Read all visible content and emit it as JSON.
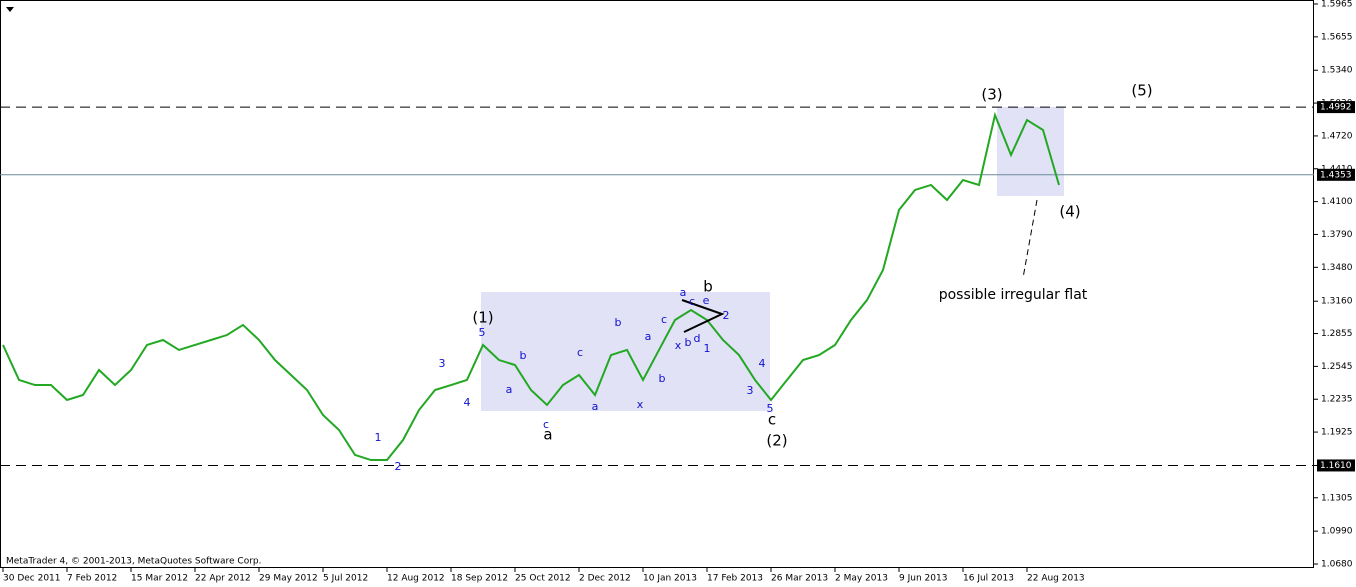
{
  "chart_data": {
    "type": "line",
    "color": "#22a822",
    "footer": "MetaTrader 4, © 2001-2013, MetaQuotes Software Corp.",
    "categories": [
      "30 Dec 2011",
      null,
      null,
      null,
      "7 Feb 2012",
      null,
      null,
      null,
      "15 Mar 2012",
      null,
      null,
      null,
      "22 Apr 2012",
      null,
      null,
      null,
      "29 May 2012",
      null,
      null,
      null,
      "5 Jul 2012",
      null,
      null,
      null,
      "12 Aug 2012",
      null,
      null,
      null,
      "18 Sep 2012",
      null,
      null,
      null,
      "25 Oct 2012",
      null,
      null,
      null,
      "2 Dec 2012",
      null,
      null,
      null,
      "10 Jan 2013",
      null,
      null,
      null,
      "17 Feb 2013",
      null,
      null,
      null,
      "26 Mar 2013",
      null,
      null,
      null,
      "2 May 2013",
      null,
      null,
      null,
      "9 Jun 2013",
      null,
      null,
      null,
      "16 Jul 2013",
      null,
      null,
      null,
      "22 Aug 2013",
      null,
      null
    ],
    "values": [
      1.2747,
      1.2417,
      1.2369,
      1.2369,
      1.2228,
      1.2275,
      1.2511,
      1.2369,
      1.2511,
      1.2747,
      1.2794,
      1.27,
      1.2747,
      1.2794,
      1.2841,
      1.2936,
      1.2794,
      1.2605,
      1.2464,
      1.2322,
      1.2086,
      1.1945,
      1.1709,
      1.1661,
      1.1661,
      1.185,
      1.2133,
      1.2322,
      1.2369,
      1.2417,
      1.2747,
      1.2605,
      1.2558,
      1.2322,
      1.2181,
      1.2369,
      1.2464,
      1.2275,
      1.2652,
      1.27,
      1.2417,
      1.27,
      1.2983,
      1.3077,
      1.2983,
      1.2794,
      1.2652,
      1.2417,
      1.2228,
      1.2417,
      1.2605,
      1.2652,
      1.2747,
      1.2983,
      1.3171,
      1.3455,
      1.4021,
      1.421,
      1.4257,
      1.4115,
      1.4304,
      1.4257,
      1.4917,
      1.454,
      1.487,
      1.4776,
      1.4257
    ],
    "ylim": [
      1.068,
      1.5965
    ],
    "yticks": [
      {
        "value": 1.5965,
        "label": "1.5965"
      },
      {
        "value": 1.5655,
        "label": "1.5655"
      },
      {
        "value": 1.534,
        "label": "1.5340"
      },
      {
        "value": 1.503,
        "label": "1.5030"
      },
      {
        "value": 1.472,
        "label": "1.4720"
      },
      {
        "value": 1.441,
        "label": "1.4410"
      },
      {
        "value": 1.41,
        "label": "1.4100"
      },
      {
        "value": 1.379,
        "label": "1.3790"
      },
      {
        "value": 1.348,
        "label": "1.3480"
      },
      {
        "value": 1.316,
        "label": "1.3160"
      },
      {
        "value": 1.2855,
        "label": "1.2855"
      },
      {
        "value": 1.2545,
        "label": "1.2545"
      },
      {
        "value": 1.2235,
        "label": "1.2235"
      },
      {
        "value": 1.1925,
        "label": "1.1925"
      },
      {
        "value": 1.161,
        "label": "1.1610"
      },
      {
        "value": 1.1305,
        "label": "1.1305"
      },
      {
        "value": 1.099,
        "label": "1.0990"
      },
      {
        "value": 1.068,
        "label": "1.0680"
      }
    ],
    "levels": [
      {
        "value": 1.4992,
        "label": "1.4992",
        "dashed": true
      },
      {
        "value": 1.4353,
        "label": "1.4353",
        "dashed": false
      },
      {
        "value": 1.161,
        "label": "1.1610",
        "dashed": true
      }
    ],
    "wave_labels_black": [
      "(1)",
      "(2)",
      "(3)",
      "(4)",
      "(5)",
      "a",
      "b",
      "c"
    ],
    "wave_labels_blue": [
      "1",
      "2",
      "3",
      "4",
      "5",
      "a",
      "b",
      "c",
      "a",
      "b",
      "c",
      "x",
      "a",
      "b",
      "c",
      "a",
      "c",
      "e",
      "x",
      "b",
      "d",
      "1",
      "2",
      "4",
      "3",
      "5",
      "c"
    ],
    "note": "possible irregular flat"
  }
}
